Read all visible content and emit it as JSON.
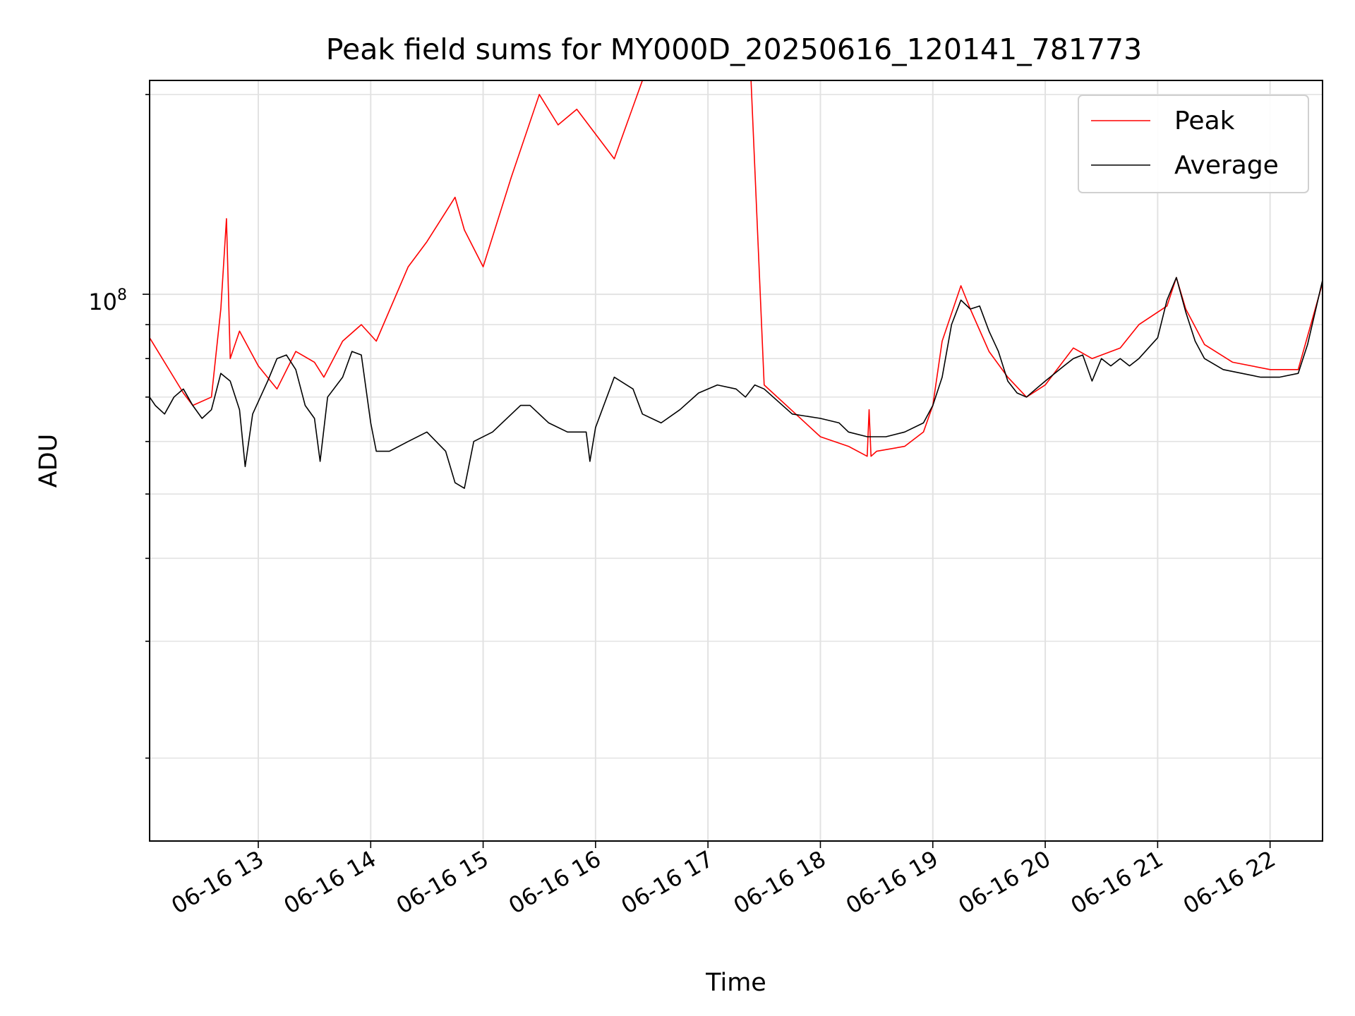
{
  "chart_data": {
    "type": "line",
    "title": "Peak field sums for MY000D_20250616_120141_781773",
    "xlabel": "Time",
    "ylabel": "ADU",
    "y_scale": "log",
    "ylim": [
      15000000,
      210000000
    ],
    "xlim": [
      "2025-06-16 12:02",
      "2025-06-16 22:28"
    ],
    "y_major_tick": {
      "value": 100000000,
      "label": "10^8",
      "base": "10",
      "exponent": "8"
    },
    "y_minor_ticks": [
      20000000,
      30000000,
      40000000,
      50000000,
      60000000,
      70000000,
      80000000,
      90000000,
      200000000
    ],
    "x_ticks": [
      {
        "t": "2025-06-16 13:00",
        "label": "06-16 13"
      },
      {
        "t": "2025-06-16 14:00",
        "label": "06-16 14"
      },
      {
        "t": "2025-06-16 15:00",
        "label": "06-16 15"
      },
      {
        "t": "2025-06-16 16:00",
        "label": "06-16 16"
      },
      {
        "t": "2025-06-16 17:00",
        "label": "06-16 17"
      },
      {
        "t": "2025-06-16 18:00",
        "label": "06-16 18"
      },
      {
        "t": "2025-06-16 19:00",
        "label": "06-16 19"
      },
      {
        "t": "2025-06-16 20:00",
        "label": "06-16 20"
      },
      {
        "t": "2025-06-16 21:00",
        "label": "06-16 21"
      },
      {
        "t": "2025-06-16 22:00",
        "label": "06-16 22"
      }
    ],
    "grid": true,
    "legend_position": "top-right",
    "series": [
      {
        "name": "Peak",
        "color": "#ff0000",
        "x": [
          "2025-06-16 12:02",
          "2025-06-16 12:20",
          "2025-06-16 12:25",
          "2025-06-16 12:35",
          "2025-06-16 12:40",
          "2025-06-16 12:43",
          "2025-06-16 12:45",
          "2025-06-16 12:50",
          "2025-06-16 13:00",
          "2025-06-16 13:10",
          "2025-06-16 13:20",
          "2025-06-16 13:30",
          "2025-06-16 13:35",
          "2025-06-16 13:45",
          "2025-06-16 13:55",
          "2025-06-16 14:03",
          "2025-06-16 14:20",
          "2025-06-16 14:30",
          "2025-06-16 14:45",
          "2025-06-16 14:50",
          "2025-06-16 15:00",
          "2025-06-16 15:15",
          "2025-06-16 15:30",
          "2025-06-16 15:40",
          "2025-06-16 15:50",
          "2025-06-16 16:10",
          "2025-06-16 16:25",
          "2025-06-16 16:35",
          "2025-06-16 16:45",
          "2025-06-16 16:55",
          "2025-06-16 17:05",
          "2025-06-16 17:15",
          "2025-06-16 17:20",
          "2025-06-16 17:23",
          "2025-06-16 17:30",
          "2025-06-16 18:00",
          "2025-06-16 18:15",
          "2025-06-16 18:25",
          "2025-06-16 18:26",
          "2025-06-16 18:27",
          "2025-06-16 18:30",
          "2025-06-16 18:45",
          "2025-06-16 18:55",
          "2025-06-16 19:00",
          "2025-06-16 19:05",
          "2025-06-16 19:15",
          "2025-06-16 19:20",
          "2025-06-16 19:30",
          "2025-06-16 19:40",
          "2025-06-16 19:50",
          "2025-06-16 20:00",
          "2025-06-16 20:15",
          "2025-06-16 20:25",
          "2025-06-16 20:40",
          "2025-06-16 20:50",
          "2025-06-16 21:05",
          "2025-06-16 21:10",
          "2025-06-16 21:15",
          "2025-06-16 21:25",
          "2025-06-16 21:40",
          "2025-06-16 22:00",
          "2025-06-16 22:15",
          "2025-06-16 22:28"
        ],
        "y": [
          86000000,
          71000000,
          68000000,
          70000000,
          95000000,
          130000000,
          80000000,
          88000000,
          78000000,
          72000000,
          82000000,
          79000000,
          75000000,
          85000000,
          90000000,
          85000000,
          110000000,
          120000000,
          140000000,
          125000000,
          110000000,
          150000000,
          200000000,
          180000000,
          190000000,
          160000000,
          210000000,
          210000000,
          210000000,
          210000000,
          210000000,
          210000000,
          210000000,
          210000000,
          73000000,
          61000000,
          59000000,
          57000000,
          67000000,
          57000000,
          58000000,
          59000000,
          62000000,
          68000000,
          85000000,
          103000000,
          95000000,
          82000000,
          75000000,
          70000000,
          73000000,
          83000000,
          80000000,
          83000000,
          90000000,
          96000000,
          106000000,
          95000000,
          84000000,
          79000000,
          77000000,
          77000000,
          104000000
        ]
      },
      {
        "name": "Average",
        "color": "#000000",
        "x": [
          "2025-06-16 12:02",
          "2025-06-16 12:05",
          "2025-06-16 12:10",
          "2025-06-16 12:15",
          "2025-06-16 12:20",
          "2025-06-16 12:25",
          "2025-06-16 12:30",
          "2025-06-16 12:35",
          "2025-06-16 12:40",
          "2025-06-16 12:45",
          "2025-06-16 12:50",
          "2025-06-16 12:53",
          "2025-06-16 12:57",
          "2025-06-16 13:05",
          "2025-06-16 13:10",
          "2025-06-16 13:15",
          "2025-06-16 13:20",
          "2025-06-16 13:25",
          "2025-06-16 13:30",
          "2025-06-16 13:33",
          "2025-06-16 13:37",
          "2025-06-16 13:45",
          "2025-06-16 13:50",
          "2025-06-16 13:55",
          "2025-06-16 14:00",
          "2025-06-16 14:03",
          "2025-06-16 14:10",
          "2025-06-16 14:20",
          "2025-06-16 14:30",
          "2025-06-16 14:40",
          "2025-06-16 14:45",
          "2025-06-16 14:50",
          "2025-06-16 14:55",
          "2025-06-16 15:05",
          "2025-06-16 15:20",
          "2025-06-16 15:25",
          "2025-06-16 15:35",
          "2025-06-16 15:45",
          "2025-06-16 15:55",
          "2025-06-16 15:57",
          "2025-06-16 16:00",
          "2025-06-16 16:10",
          "2025-06-16 16:20",
          "2025-06-16 16:25",
          "2025-06-16 16:35",
          "2025-06-16 16:45",
          "2025-06-16 16:55",
          "2025-06-16 17:05",
          "2025-06-16 17:15",
          "2025-06-16 17:20",
          "2025-06-16 17:25",
          "2025-06-16 17:30",
          "2025-06-16 17:45",
          "2025-06-16 18:00",
          "2025-06-16 18:10",
          "2025-06-16 18:15",
          "2025-06-16 18:25",
          "2025-06-16 18:35",
          "2025-06-16 18:45",
          "2025-06-16 18:55",
          "2025-06-16 19:00",
          "2025-06-16 19:05",
          "2025-06-16 19:10",
          "2025-06-16 19:15",
          "2025-06-16 19:20",
          "2025-06-16 19:25",
          "2025-06-16 19:30",
          "2025-06-16 19:35",
          "2025-06-16 19:40",
          "2025-06-16 19:45",
          "2025-06-16 19:50",
          "2025-06-16 19:55",
          "2025-06-16 20:00",
          "2025-06-16 20:10",
          "2025-06-16 20:15",
          "2025-06-16 20:20",
          "2025-06-16 20:25",
          "2025-06-16 20:30",
          "2025-06-16 20:35",
          "2025-06-16 20:40",
          "2025-06-16 20:45",
          "2025-06-16 20:50",
          "2025-06-16 21:00",
          "2025-06-16 21:05",
          "2025-06-16 21:10",
          "2025-06-16 21:15",
          "2025-06-16 21:20",
          "2025-06-16 21:25",
          "2025-06-16 21:35",
          "2025-06-16 21:45",
          "2025-06-16 21:55",
          "2025-06-16 22:05",
          "2025-06-16 22:15",
          "2025-06-16 22:20",
          "2025-06-16 22:28"
        ],
        "y": [
          70000000,
          68000000,
          66000000,
          70000000,
          72000000,
          68000000,
          65000000,
          67000000,
          76000000,
          74000000,
          67000000,
          55000000,
          66000000,
          74000000,
          80000000,
          81000000,
          77000000,
          68000000,
          65000000,
          56000000,
          70000000,
          75000000,
          82000000,
          81000000,
          64000000,
          58000000,
          58000000,
          60000000,
          62000000,
          58000000,
          52000000,
          51000000,
          60000000,
          62000000,
          68000000,
          68000000,
          64000000,
          62000000,
          62000000,
          56000000,
          63000000,
          75000000,
          72000000,
          66000000,
          64000000,
          67000000,
          71000000,
          73000000,
          72000000,
          70000000,
          73000000,
          72000000,
          66000000,
          65000000,
          64000000,
          62000000,
          61000000,
          61000000,
          62000000,
          64000000,
          68000000,
          75000000,
          90000000,
          98000000,
          95000000,
          96000000,
          88000000,
          82000000,
          74000000,
          71000000,
          70000000,
          72000000,
          74000000,
          78000000,
          80000000,
          81000000,
          74000000,
          80000000,
          78000000,
          80000000,
          78000000,
          80000000,
          86000000,
          98000000,
          106000000,
          94000000,
          85000000,
          80000000,
          77000000,
          76000000,
          75000000,
          75000000,
          76000000,
          84000000,
          105000000
        ]
      }
    ]
  }
}
